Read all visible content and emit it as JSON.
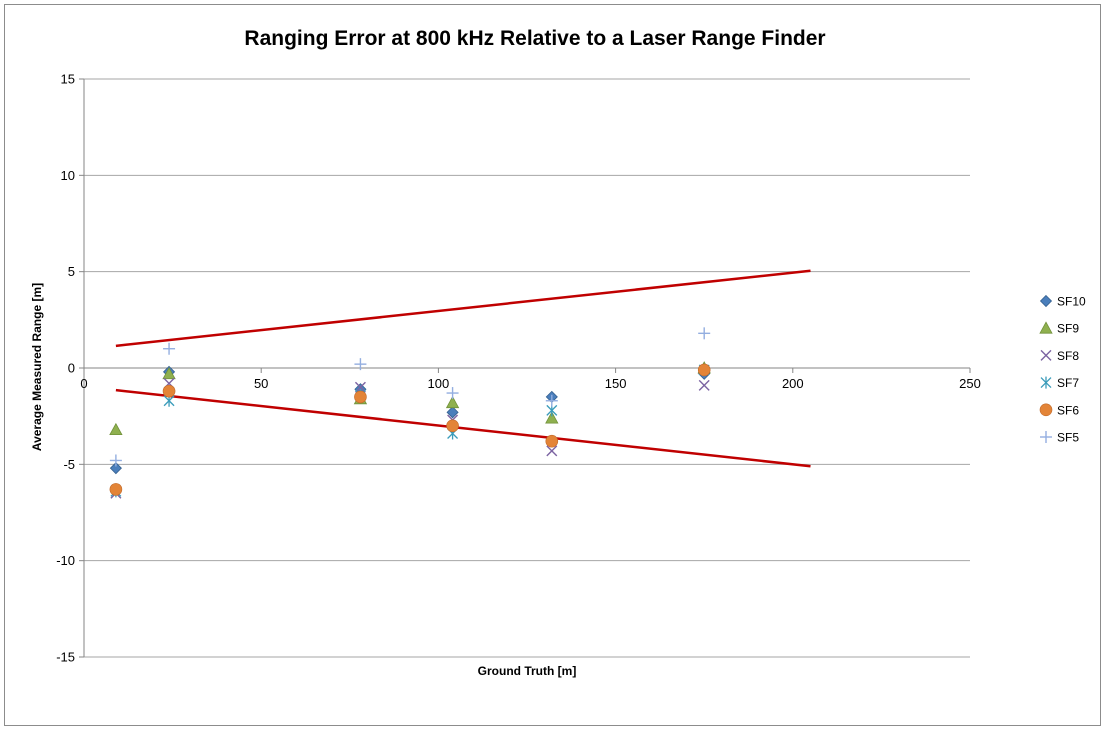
{
  "chart_data": {
    "type": "scatter",
    "title": "Ranging Error at 800 kHz Relative to a Laser Range Finder",
    "xlabel": "Ground Truth [m]",
    "ylabel": "Average Measured Range [m]",
    "xlim": [
      0,
      250
    ],
    "ylim": [
      -15,
      15
    ],
    "xticks": [
      0,
      50,
      100,
      150,
      200,
      250
    ],
    "yticks": [
      -15,
      -10,
      -5,
      0,
      5,
      10,
      15
    ],
    "grid": "horizontal",
    "legend_position": "right",
    "series": [
      {
        "name": "SF10",
        "marker": "diamond",
        "color": "#4a7ebb",
        "points": [
          [
            9,
            -5.2
          ],
          [
            24,
            -0.2
          ],
          [
            78,
            -1.1
          ],
          [
            104,
            -2.3
          ],
          [
            132,
            -1.5
          ],
          [
            175,
            -0.3
          ]
        ]
      },
      {
        "name": "SF9",
        "marker": "triangle",
        "color": "#8fb04f",
        "points": [
          [
            9,
            -3.2
          ],
          [
            24,
            -0.3
          ],
          [
            78,
            -1.6
          ],
          [
            104,
            -1.8
          ],
          [
            132,
            -2.6
          ],
          [
            175,
            0.0
          ]
        ]
      },
      {
        "name": "SF8",
        "marker": "x",
        "color": "#7b63a2",
        "points": [
          [
            9,
            -6.5
          ],
          [
            24,
            -0.8
          ],
          [
            78,
            -1.0
          ],
          [
            104,
            -2.7
          ],
          [
            132,
            -4.3
          ],
          [
            175,
            -0.9
          ]
        ]
      },
      {
        "name": "SF7",
        "marker": "star",
        "color": "#3b9cba",
        "points": [
          [
            9,
            -6.4
          ],
          [
            24,
            -1.7
          ],
          [
            78,
            -1.4
          ],
          [
            104,
            -3.4
          ],
          [
            132,
            -2.2
          ],
          [
            175,
            -0.1
          ]
        ]
      },
      {
        "name": "SF6",
        "marker": "circle",
        "color": "#e38437",
        "points": [
          [
            9,
            -6.3
          ],
          [
            24,
            -1.2
          ],
          [
            78,
            -1.5
          ],
          [
            104,
            -3.0
          ],
          [
            132,
            -3.8
          ],
          [
            175,
            -0.1
          ]
        ]
      },
      {
        "name": "SF5",
        "marker": "plus",
        "color": "#93aee0",
        "points": [
          [
            9,
            -4.8
          ],
          [
            24,
            1.0
          ],
          [
            78,
            0.2
          ],
          [
            104,
            -1.3
          ],
          [
            132,
            -1.7
          ],
          [
            175,
            1.8
          ]
        ]
      }
    ],
    "reference_lines": [
      {
        "color": "#c00000",
        "points": [
          [
            9,
            1.15
          ],
          [
            205,
            5.05
          ]
        ]
      },
      {
        "color": "#c00000",
        "points": [
          [
            9,
            -1.15
          ],
          [
            205,
            -5.1
          ]
        ]
      }
    ]
  }
}
